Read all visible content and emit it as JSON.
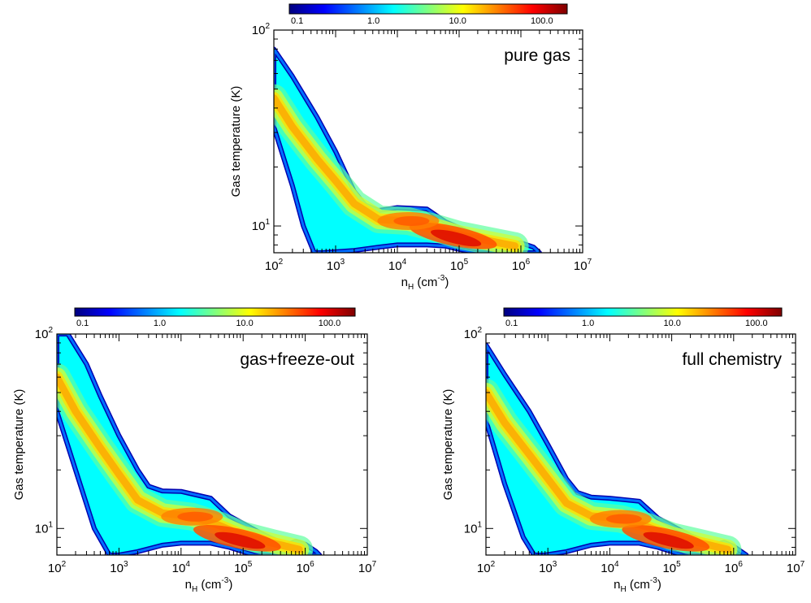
{
  "colorbar": {
    "scale": "log",
    "range": [
      0.1,
      200
    ],
    "tick_labels": [
      "0.1",
      "1.0",
      "10.0",
      "100.0"
    ],
    "tick_values": [
      0.1,
      1.0,
      10.0,
      100.0
    ],
    "colors": [
      "#00007f",
      "#0000ff",
      "#007fff",
      "#00ffff",
      "#7fff7f",
      "#ffff00",
      "#ff7f00",
      "#ff0000",
      "#7f0000"
    ]
  },
  "chart_data": [
    {
      "type": "heatmap",
      "panel_label": "pure gas",
      "xlabel": {
        "main": "n",
        "sub": "H",
        "unit_pre": " (cm",
        "unit_sup": "-3",
        "unit_post": ")"
      },
      "ylabel": "Gas temperature (K)",
      "xscale": "log",
      "yscale": "log",
      "xlim": [
        100,
        10000000
      ],
      "ylim": [
        7.3,
        100
      ],
      "x_ticks": [
        {
          "base": "10",
          "exp": "2"
        },
        {
          "base": "10",
          "exp": "3"
        },
        {
          "base": "10",
          "exp": "4"
        },
        {
          "base": "10",
          "exp": "5"
        },
        {
          "base": "10",
          "exp": "6"
        },
        {
          "base": "10",
          "exp": "7"
        }
      ],
      "y_ticks": [
        {
          "value": 10,
          "base": "10",
          "exp": "1"
        },
        {
          "value": 100,
          "base": "10",
          "exp": "2"
        }
      ],
      "upper_envelope": [
        [
          100,
          80
        ],
        [
          200,
          58
        ],
        [
          500,
          36
        ],
        [
          1000,
          24
        ],
        [
          2000,
          15
        ],
        [
          3000,
          12.8
        ],
        [
          5000,
          12.0
        ],
        [
          10000,
          12.4
        ],
        [
          30000,
          12.2
        ],
        [
          60000,
          10.5
        ],
        [
          200000,
          8.9
        ],
        [
          600000,
          8.1
        ],
        [
          1000000,
          8.2
        ],
        [
          1600000,
          7.8
        ],
        [
          2000000,
          7.3
        ]
      ],
      "lower_envelope": [
        [
          100,
          32
        ],
        [
          200,
          16
        ],
        [
          300,
          10
        ],
        [
          450,
          7.3
        ],
        [
          600,
          7.3
        ],
        [
          2000,
          7.5
        ],
        [
          5000,
          7.8
        ],
        [
          10000,
          8.0
        ],
        [
          30000,
          8.0
        ],
        [
          60000,
          7.9
        ],
        [
          100000,
          7.6
        ],
        [
          200000,
          7.3
        ]
      ],
      "density_ridge": [
        [
          100,
          45
        ],
        [
          200,
          32
        ],
        [
          500,
          22
        ],
        [
          1000,
          17
        ],
        [
          2000,
          13
        ],
        [
          5000,
          10.8
        ],
        [
          15000,
          10.6
        ],
        [
          40000,
          9.8
        ],
        [
          100000,
          9.0
        ],
        [
          300000,
          8.4
        ],
        [
          800000,
          7.9
        ]
      ],
      "density_peak": {
        "x": 100000,
        "y": 8.6
      }
    },
    {
      "type": "heatmap",
      "panel_label": "gas+freeze-out",
      "xlabel": {
        "main": "n",
        "sub": "H",
        "unit_pre": " (cm",
        "unit_sup": "-3",
        "unit_post": ")"
      },
      "ylabel": "Gas temperature (K)",
      "xscale": "log",
      "yscale": "log",
      "xlim": [
        100,
        10000000
      ],
      "ylim": [
        7.3,
        100
      ],
      "x_ticks": [
        {
          "base": "10",
          "exp": "2"
        },
        {
          "base": "10",
          "exp": "3"
        },
        {
          "base": "10",
          "exp": "4"
        },
        {
          "base": "10",
          "exp": "5"
        },
        {
          "base": "10",
          "exp": "6"
        },
        {
          "base": "10",
          "exp": "7"
        }
      ],
      "y_ticks": [
        {
          "value": 10,
          "base": "10",
          "exp": "1"
        },
        {
          "value": 100,
          "base": "10",
          "exp": "2"
        }
      ],
      "upper_envelope": [
        [
          100,
          100
        ],
        [
          150,
          100
        ],
        [
          300,
          70
        ],
        [
          500,
          48
        ],
        [
          1000,
          30
        ],
        [
          2000,
          20
        ],
        [
          3000,
          16.5
        ],
        [
          5000,
          15.6
        ],
        [
          10000,
          15.5
        ],
        [
          30000,
          14.3
        ],
        [
          60000,
          11.6
        ],
        [
          200000,
          9.4
        ],
        [
          500000,
          8.2
        ],
        [
          700000,
          8.6
        ],
        [
          1000000,
          8.3
        ],
        [
          1500000,
          7.6
        ],
        [
          1700000,
          7.3
        ]
      ],
      "lower_envelope": [
        [
          100,
          40
        ],
        [
          200,
          20
        ],
        [
          400,
          10
        ],
        [
          700,
          7.3
        ],
        [
          1000,
          7.3
        ],
        [
          2000,
          7.6
        ],
        [
          5000,
          8.2
        ],
        [
          10000,
          8.4
        ],
        [
          30000,
          8.4
        ],
        [
          60000,
          8.0
        ],
        [
          100000,
          7.6
        ],
        [
          150000,
          7.3
        ]
      ],
      "density_ridge": [
        [
          100,
          60
        ],
        [
          200,
          40
        ],
        [
          500,
          26
        ],
        [
          1000,
          19
        ],
        [
          2000,
          14
        ],
        [
          5000,
          12
        ],
        [
          15000,
          11.5
        ],
        [
          40000,
          10.4
        ],
        [
          100000,
          9.2
        ],
        [
          300000,
          8.4
        ],
        [
          800000,
          7.8
        ]
      ],
      "density_peak": {
        "x": 100000,
        "y": 8.6
      }
    },
    {
      "type": "heatmap",
      "panel_label": "full chemistry",
      "xlabel": {
        "main": "n",
        "sub": "H",
        "unit_pre": " (cm",
        "unit_sup": "-3",
        "unit_post": ")"
      },
      "ylabel": "Gas temperature (K)",
      "xscale": "log",
      "yscale": "log",
      "xlim": [
        100,
        10000000
      ],
      "ylim": [
        7.3,
        100
      ],
      "x_ticks": [
        {
          "base": "10",
          "exp": "2"
        },
        {
          "base": "10",
          "exp": "3"
        },
        {
          "base": "10",
          "exp": "4"
        },
        {
          "base": "10",
          "exp": "5"
        },
        {
          "base": "10",
          "exp": "6"
        },
        {
          "base": "10",
          "exp": "7"
        }
      ],
      "y_ticks": [
        {
          "value": 10,
          "base": "10",
          "exp": "1"
        },
        {
          "value": 100,
          "base": "10",
          "exp": "2"
        }
      ],
      "upper_envelope": [
        [
          100,
          88
        ],
        [
          200,
          62
        ],
        [
          500,
          40
        ],
        [
          1000,
          27
        ],
        [
          2000,
          18
        ],
        [
          3000,
          15.3
        ],
        [
          5000,
          14.5
        ],
        [
          10000,
          14.3
        ],
        [
          30000,
          13.8
        ],
        [
          60000,
          11.3
        ],
        [
          200000,
          9.2
        ],
        [
          500000,
          8.2
        ],
        [
          700000,
          8.5
        ],
        [
          1000000,
          8.1
        ],
        [
          1600000,
          7.3
        ]
      ],
      "lower_envelope": [
        [
          100,
          36
        ],
        [
          200,
          17
        ],
        [
          400,
          9
        ],
        [
          600,
          7.3
        ],
        [
          900,
          7.3
        ],
        [
          2000,
          7.6
        ],
        [
          5000,
          8.2
        ],
        [
          10000,
          8.4
        ],
        [
          30000,
          8.4
        ],
        [
          60000,
          8.0
        ],
        [
          100000,
          7.6
        ],
        [
          150000,
          7.3
        ]
      ],
      "density_ridge": [
        [
          100,
          50
        ],
        [
          200,
          35
        ],
        [
          500,
          24
        ],
        [
          1000,
          18
        ],
        [
          2000,
          13.5
        ],
        [
          5000,
          11.6
        ],
        [
          15000,
          11.2
        ],
        [
          40000,
          10.2
        ],
        [
          100000,
          9.1
        ],
        [
          300000,
          8.4
        ],
        [
          800000,
          7.8
        ]
      ],
      "density_peak": {
        "x": 100000,
        "y": 8.6
      }
    }
  ]
}
